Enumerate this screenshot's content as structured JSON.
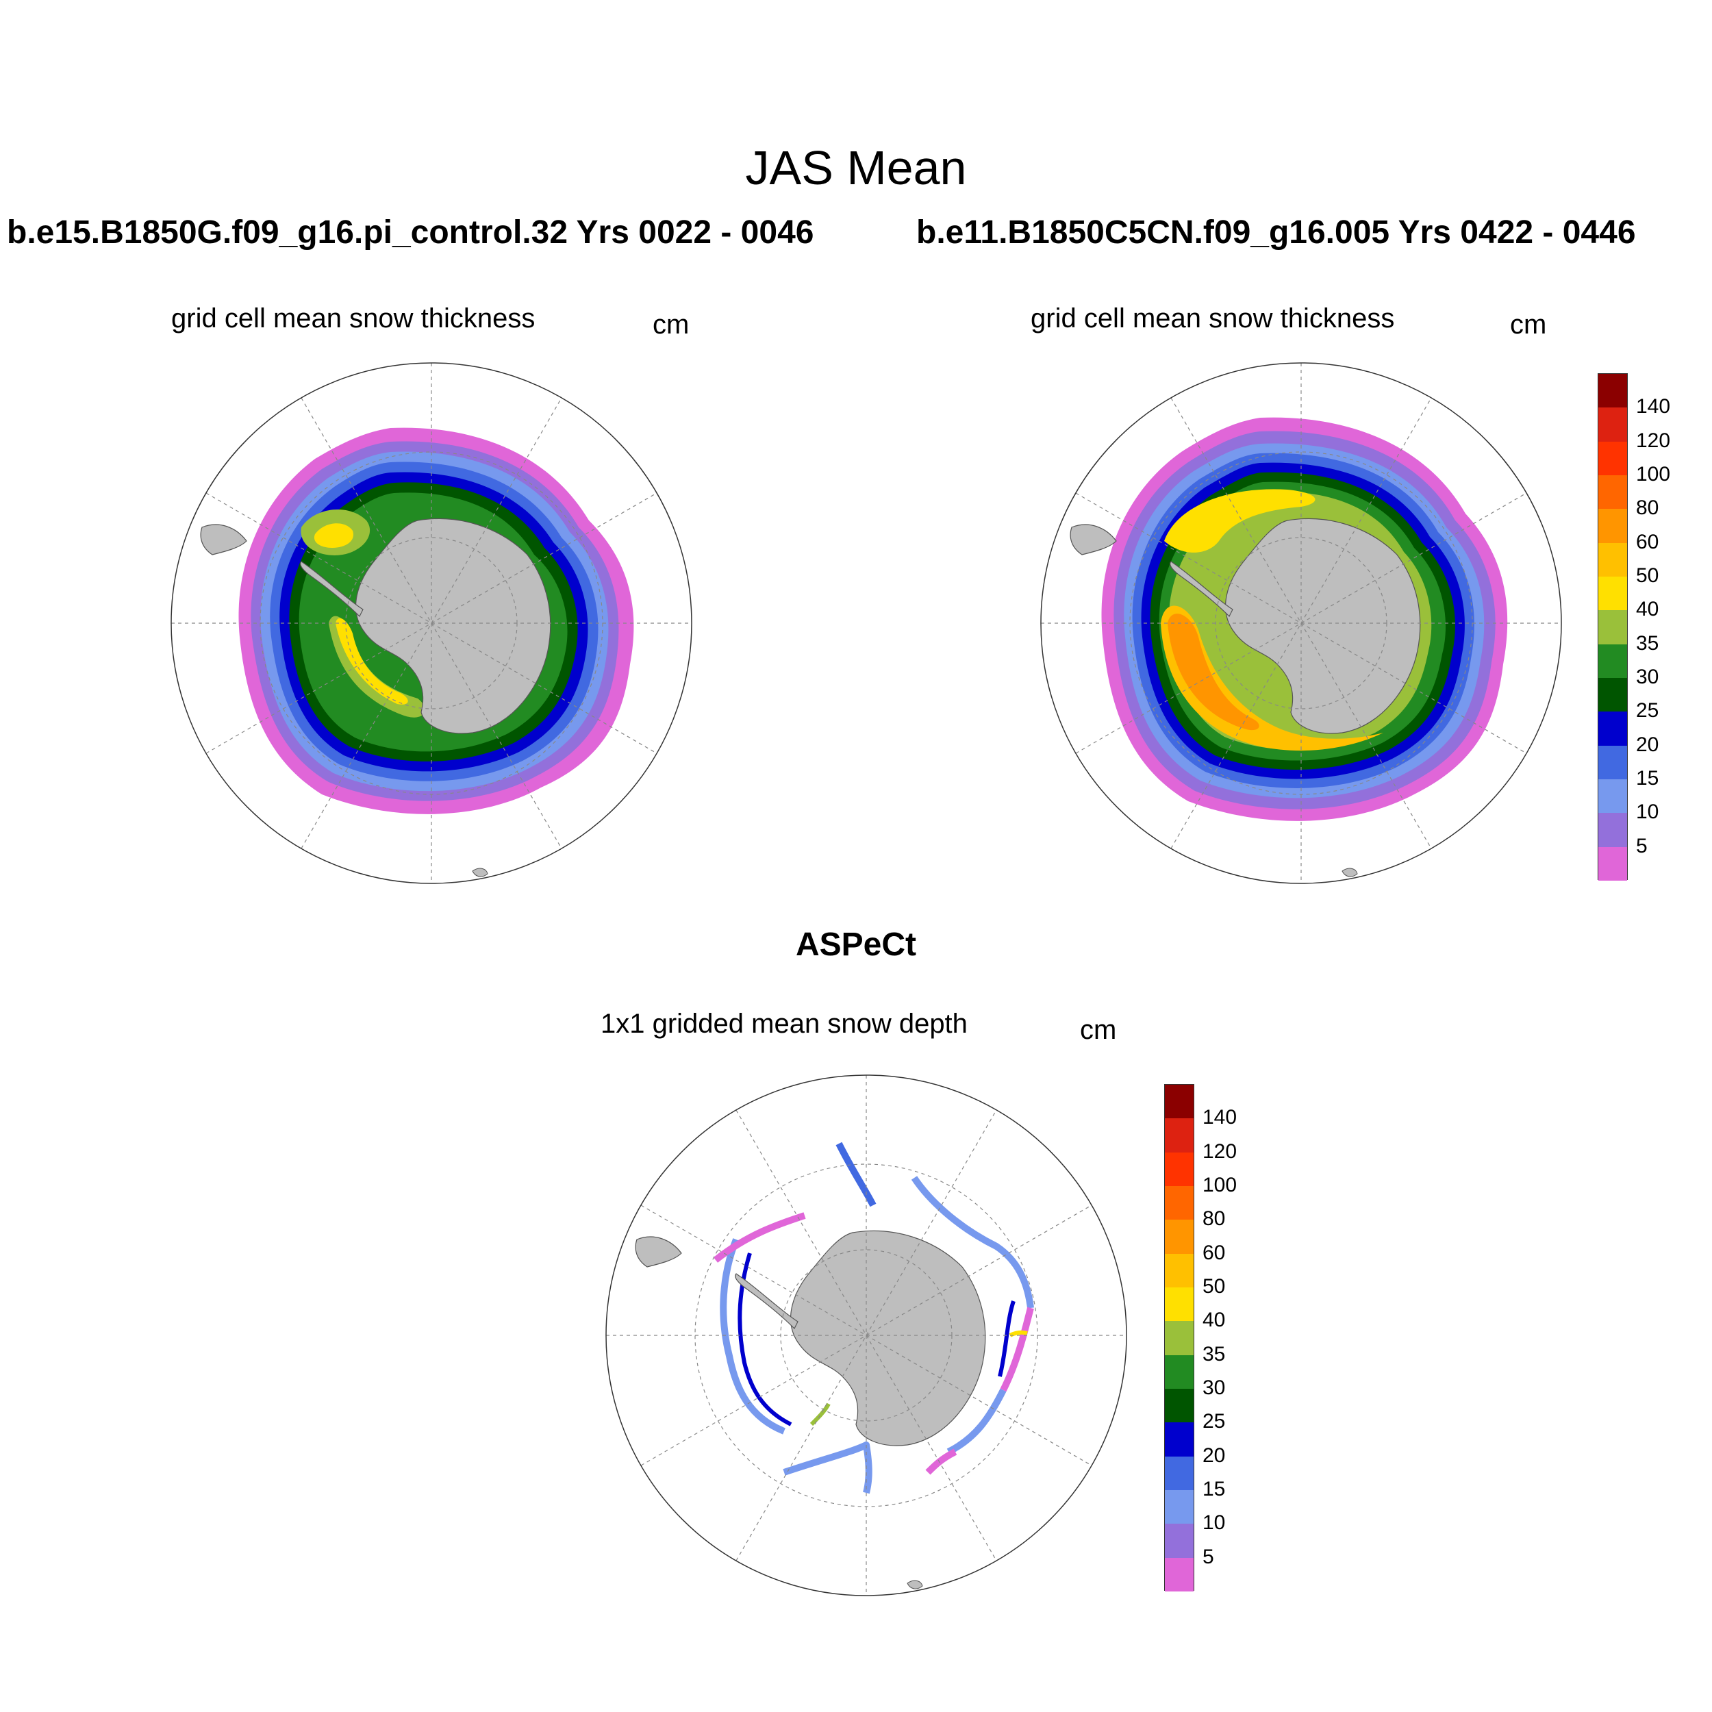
{
  "figure": {
    "title": "JAS Mean",
    "left_case": "b.e15.B1850G.f09_g16.pi_control.32  Yrs 0022 - 0046",
    "right_case": "b.e11.B1850C5CN.f09_g16.005  Yrs 0422 - 0446",
    "obs_title": "ASPeCt"
  },
  "panels": [
    {
      "id": "model-1",
      "subtitle": "grid cell mean snow thickness",
      "units": "cm"
    },
    {
      "id": "model-2",
      "subtitle": "grid cell mean snow thickness",
      "units": "cm"
    },
    {
      "id": "observations",
      "subtitle": "1x1 gridded mean snow depth",
      "units": "cm"
    }
  ],
  "colorbar": {
    "labels": [
      "5",
      "10",
      "15",
      "20",
      "25",
      "30",
      "35",
      "40",
      "50",
      "60",
      "80",
      "100",
      "120",
      "140"
    ],
    "colors": [
      "#e066d8",
      "#9370db",
      "#7799ee",
      "#4169e1",
      "#0000cd",
      "#005500",
      "#228b22",
      "#9ac03a",
      "#ffe000",
      "#ffc000",
      "#ff9500",
      "#ff6600",
      "#ff3300",
      "#dd2211",
      "#8b0000"
    ]
  },
  "map_colors": {
    "land": "#bebebe",
    "grid": "#888888",
    "coast": "#333333"
  }
}
